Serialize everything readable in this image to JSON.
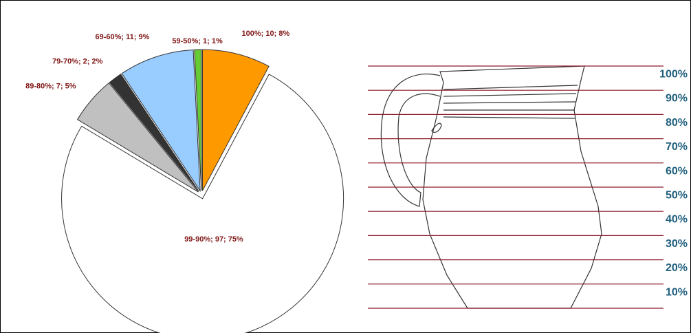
{
  "chart_data": {
    "type": "pie",
    "values": [
      10,
      97,
      7,
      2,
      11,
      1
    ],
    "value_labels": [
      "100%; 10; 8%",
      "99-90%; 97; 75%",
      "89-80%; 7; 5%",
      "79-70%; 2; 2%",
      "69-60%; 11; 9%",
      "59-50%; 1; 1%"
    ],
    "colors": [
      "#ff9900",
      "#ffffff",
      "#c0c0c0",
      "#333333",
      "#99ccff",
      "#66cc33"
    ]
  },
  "vessel_scale": {
    "labels": [
      "100%",
      "90%",
      "80%",
      "70%",
      "60%",
      "50%",
      "40%",
      "30%",
      "20%",
      "10%"
    ]
  }
}
